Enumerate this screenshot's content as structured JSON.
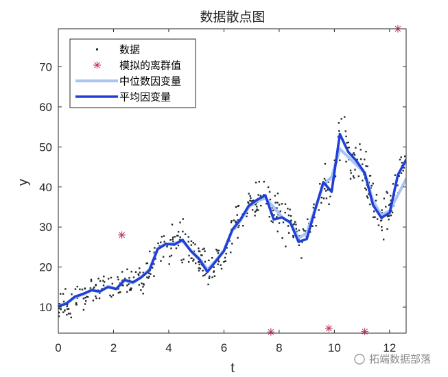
{
  "chart_data": {
    "type": "scatter",
    "title": "数据散点图",
    "xlabel": "t",
    "ylabel": "y",
    "xlim": [
      0,
      12.6
    ],
    "ylim": [
      3.5,
      79.5
    ],
    "xticks": [
      0,
      2,
      4,
      6,
      8,
      10,
      12
    ],
    "yticks": [
      10,
      20,
      30,
      40,
      50,
      60,
      70
    ],
    "grid": false,
    "legend_position": "top-left",
    "series": [
      {
        "name": "数据",
        "kind": "scatter-dots",
        "color": "#1f2a2a",
        "noise": 3.2,
        "points_per_unit": 42
      },
      {
        "name": "模拟的离群值",
        "kind": "scatter-star",
        "color": "#c0395a",
        "x": [
          2.3,
          7.7,
          9.8,
          11.1,
          12.3
        ],
        "y": [
          28,
          3.8,
          4.7,
          3.9,
          79.5
        ]
      },
      {
        "name": "中位数因变量",
        "kind": "line",
        "color": "#a9c4f5",
        "x": [
          0,
          0.3,
          0.6,
          0.9,
          1.2,
          1.5,
          1.8,
          2.1,
          2.4,
          2.7,
          3.0,
          3.3,
          3.6,
          3.9,
          4.2,
          4.5,
          4.8,
          5.1,
          5.4,
          5.7,
          6.0,
          6.3,
          6.6,
          6.9,
          7.2,
          7.5,
          7.8,
          8.1,
          8.4,
          8.7,
          9.0,
          9.3,
          9.6,
          9.9,
          10.2,
          10.5,
          10.8,
          11.1,
          11.4,
          11.7,
          12.0,
          12.3,
          12.6
        ],
        "y": [
          10.3,
          11.0,
          12.4,
          13.2,
          14.3,
          13.8,
          15.2,
          14.6,
          16.7,
          16.0,
          17.5,
          19.4,
          24.6,
          25.7,
          25.9,
          26.5,
          24.2,
          22.2,
          19.4,
          21.6,
          24.2,
          29.1,
          31.6,
          35.0,
          36.5,
          37.2,
          35.0,
          32.5,
          31.0,
          27.2,
          28.5,
          34.5,
          40.5,
          42.5,
          49.5,
          47.5,
          45.5,
          43.5,
          36.5,
          33.0,
          34.0,
          38.0,
          42.0
        ]
      },
      {
        "name": "平均因变量",
        "kind": "line",
        "color": "#1f3fd8",
        "x": [
          0,
          0.3,
          0.6,
          0.9,
          1.2,
          1.5,
          1.8,
          2.1,
          2.4,
          2.7,
          3.0,
          3.3,
          3.6,
          3.9,
          4.2,
          4.5,
          4.8,
          5.1,
          5.4,
          5.7,
          6.0,
          6.3,
          6.6,
          6.9,
          7.2,
          7.5,
          7.8,
          8.1,
          8.4,
          8.7,
          9.0,
          9.3,
          9.6,
          9.9,
          10.2,
          10.5,
          10.8,
          11.1,
          11.4,
          11.7,
          12.0,
          12.3,
          12.6
        ],
        "y": [
          10.2,
          10.9,
          12.6,
          13.3,
          14.2,
          13.9,
          15.0,
          14.5,
          16.8,
          16.2,
          17.4,
          19.2,
          24.5,
          25.8,
          25.6,
          26.8,
          24.0,
          22.0,
          18.8,
          21.4,
          24.0,
          29.3,
          31.9,
          35.3,
          36.8,
          37.9,
          31.9,
          32.4,
          31.2,
          26.3,
          27.0,
          34.2,
          41.2,
          38.8,
          53.2,
          48.8,
          46.5,
          43.5,
          35.5,
          32.3,
          33.5,
          43.0,
          46.8
        ]
      }
    ]
  },
  "watermark": "拓端数据部落"
}
